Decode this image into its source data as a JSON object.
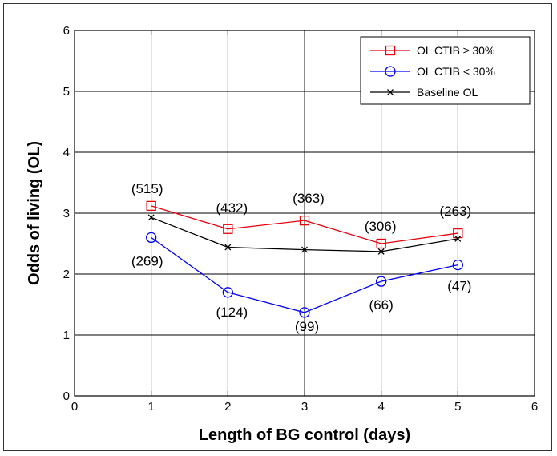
{
  "chart_data": {
    "type": "line",
    "title": "",
    "xlabel": "Length of BG control (days)",
    "ylabel": "Odds of living (OL)",
    "xlim": [
      0,
      6
    ],
    "ylim": [
      0,
      6
    ],
    "xticks": [
      "0",
      "1",
      "2",
      "3",
      "4",
      "5",
      "6"
    ],
    "yticks": [
      "0",
      "1",
      "2",
      "3",
      "4",
      "5",
      "6"
    ],
    "grid": true,
    "legend_position": "top-right",
    "x": [
      1,
      2,
      3,
      4,
      5
    ],
    "series": [
      {
        "name": "OL CTIB ≥ 30%",
        "color": "#e8000b",
        "marker": "square",
        "values": [
          3.12,
          2.74,
          2.88,
          2.5,
          2.67
        ],
        "labels": [
          "(515)",
          "(432)",
          "(363)",
          "(306)",
          "(263)"
        ]
      },
      {
        "name": "OL CTIB < 30%",
        "color": "#0000ff",
        "marker": "circle",
        "values": [
          2.6,
          1.7,
          1.37,
          1.88,
          2.15
        ],
        "labels": [
          "(269)",
          "(124)",
          "(99)",
          "(66)",
          "(47)"
        ]
      },
      {
        "name": "Baseline OL",
        "color": "#000000",
        "marker": "x",
        "values": [
          2.93,
          2.44,
          2.4,
          2.37,
          2.58
        ]
      }
    ]
  }
}
